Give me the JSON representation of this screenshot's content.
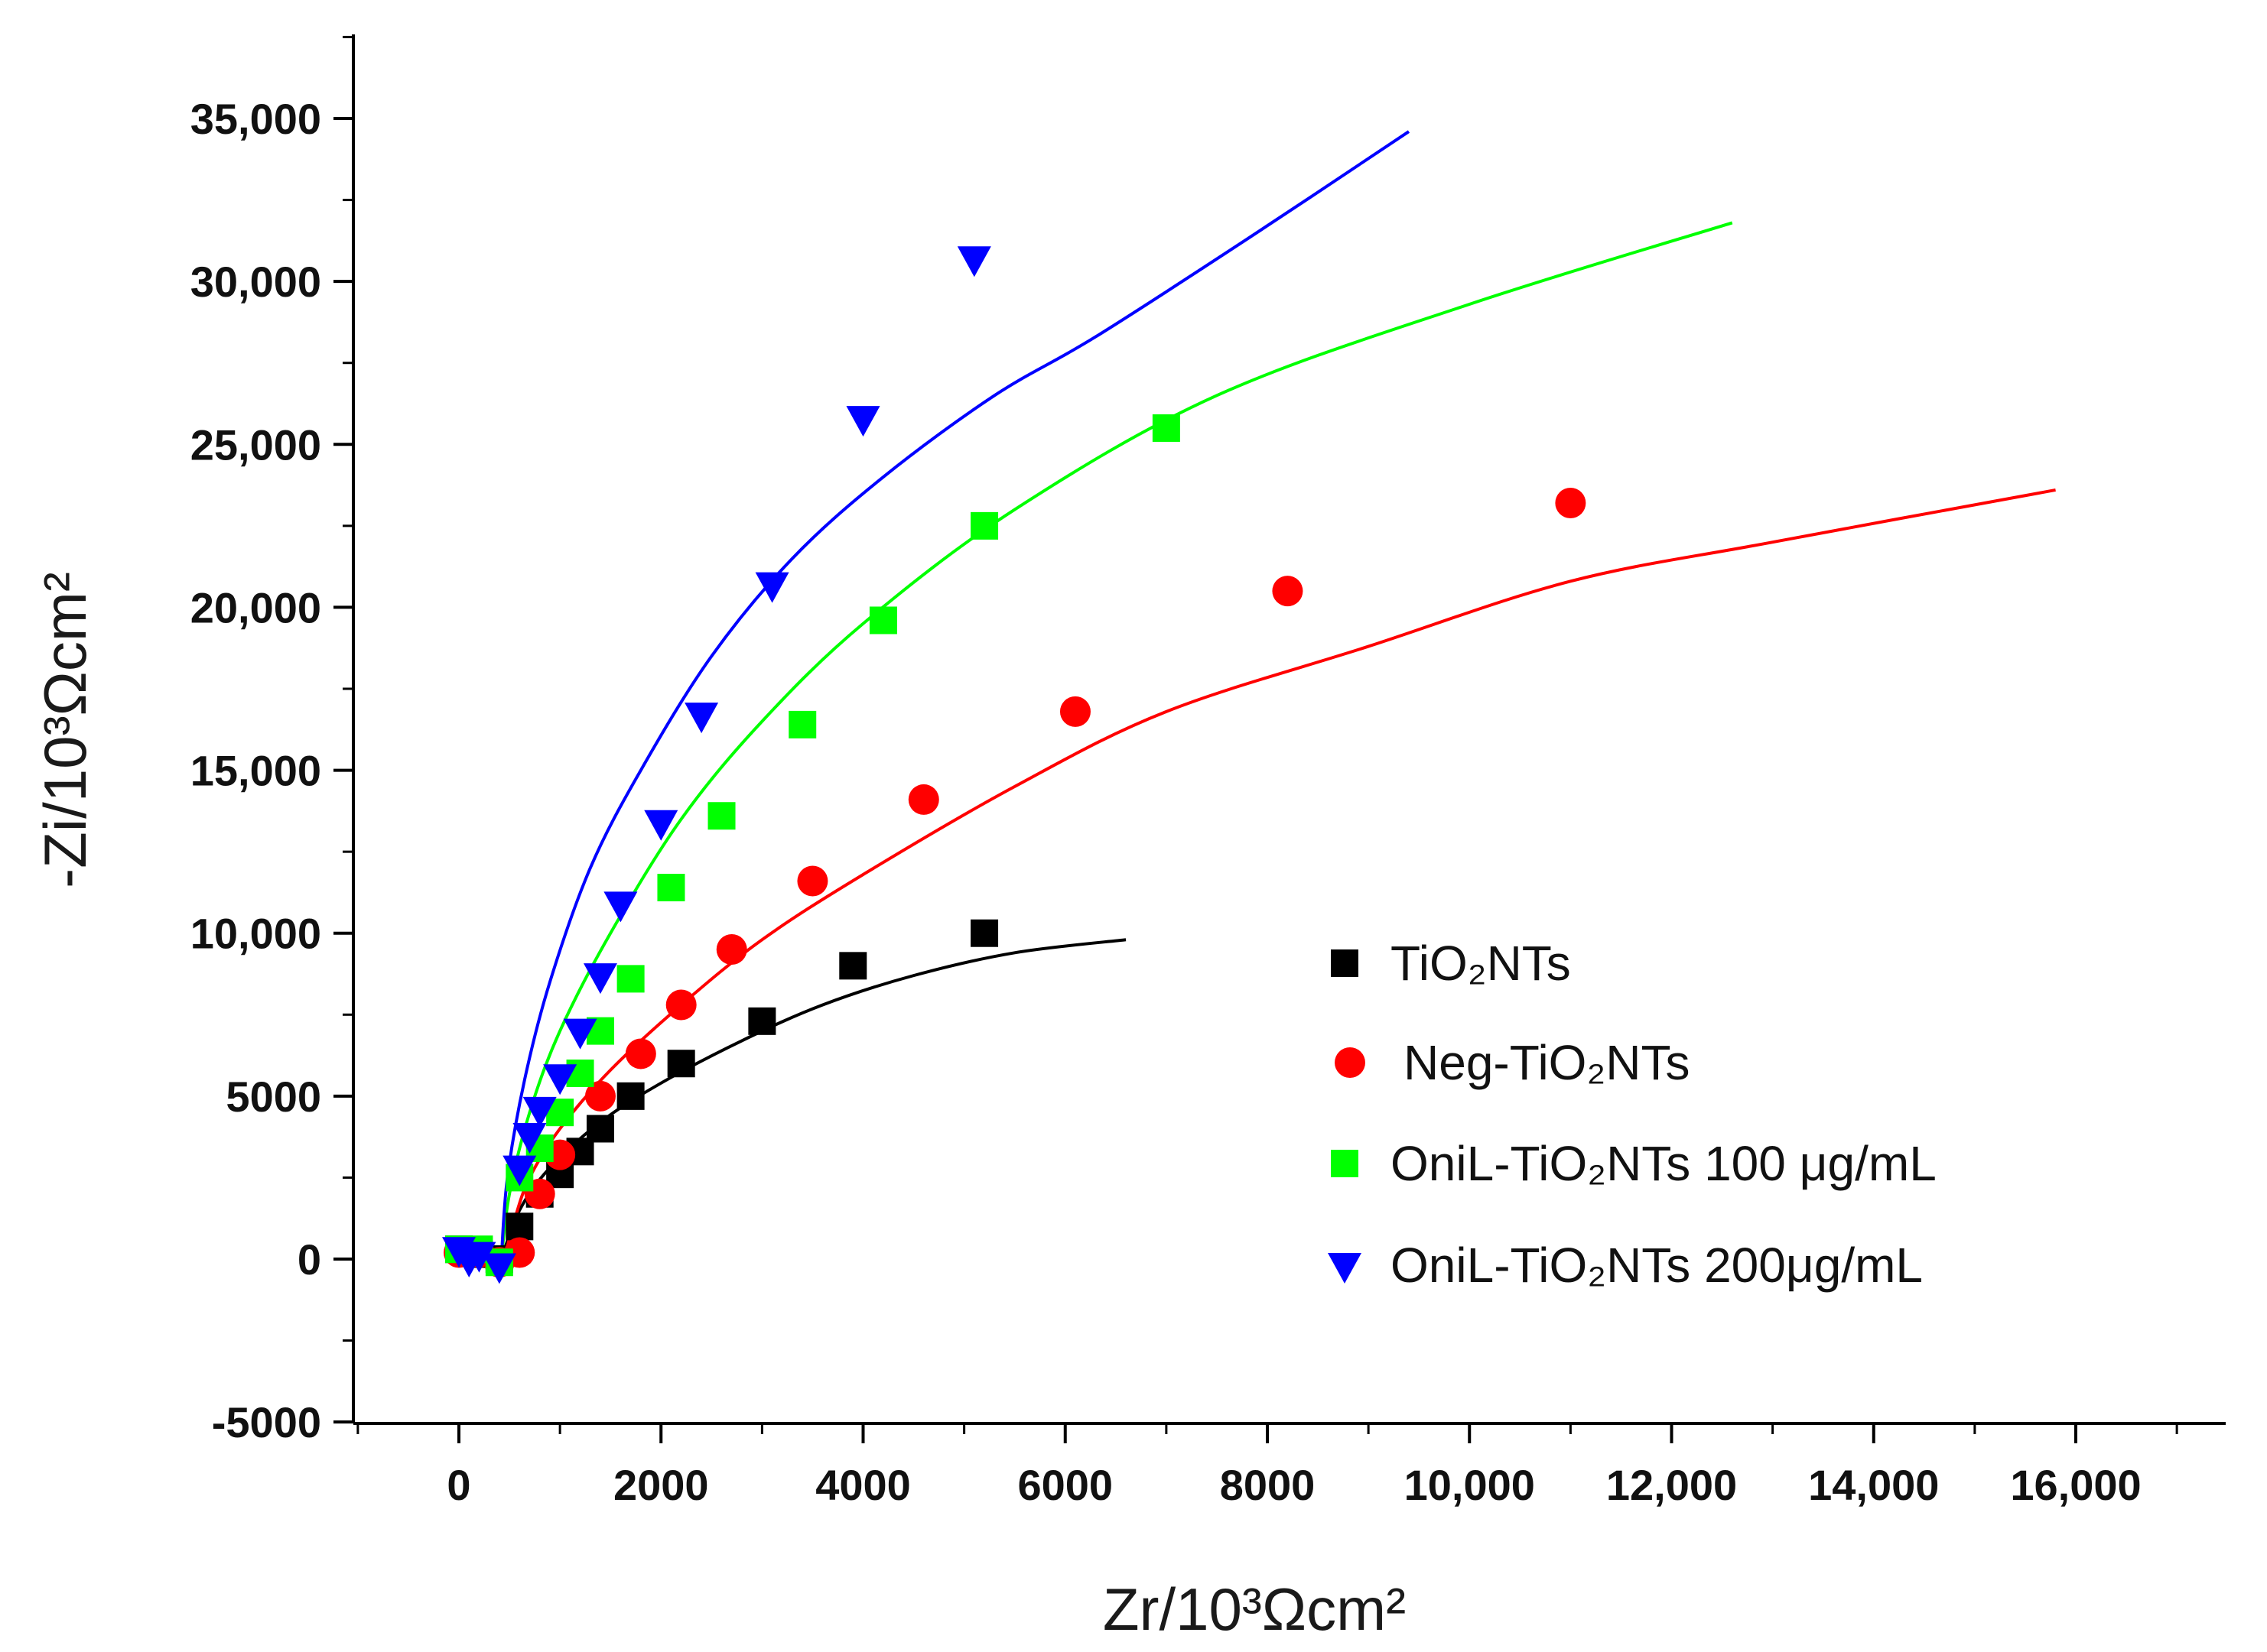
{
  "chart_data": {
    "type": "scatter",
    "title": "",
    "xlabel": "Zr/10³Ωcm²",
    "ylabel": "-Zi/10³Ωcm²",
    "xlim": [
      -1000,
      17200
    ],
    "ylim": [
      -5000,
      37000
    ],
    "xticks": [
      0,
      2000,
      4000,
      6000,
      8000,
      10000,
      12000,
      14000,
      16000
    ],
    "xtick_labels": [
      "0",
      "2000",
      "4000",
      "6000",
      "8000",
      "10,000",
      "12,000",
      "14,000",
      "16,000"
    ],
    "yticks": [
      -5000,
      0,
      5000,
      10000,
      15000,
      20000,
      25000,
      30000,
      35000
    ],
    "ytick_labels": [
      "-5000",
      "0",
      "5000",
      "10,000",
      "15,000",
      "20,000",
      "25,000",
      "30,000",
      "35,000"
    ],
    "legend_position": "right-middle",
    "series": [
      {
        "name": "TiO₂NTs",
        "color": "#000000",
        "marker": "square",
        "points": [
          [
            0,
            300
          ],
          [
            100,
            200
          ],
          [
            200,
            150
          ],
          [
            400,
            0
          ],
          [
            600,
            1000
          ],
          [
            800,
            2000
          ],
          [
            1000,
            2600
          ],
          [
            1200,
            3300
          ],
          [
            1400,
            4000
          ],
          [
            1700,
            5000
          ],
          [
            2200,
            6000
          ],
          [
            3000,
            7300
          ],
          [
            3900,
            9000
          ],
          [
            5200,
            10000
          ]
        ],
        "fit": [
          [
            420,
            0
          ],
          [
            600,
            1500
          ],
          [
            900,
            2800
          ],
          [
            1400,
            4200
          ],
          [
            2000,
            5400
          ],
          [
            2800,
            6700
          ],
          [
            3600,
            7800
          ],
          [
            4500,
            8700
          ],
          [
            5500,
            9400
          ],
          [
            6600,
            9800
          ]
        ]
      },
      {
        "name": "Neg-TiO₂NTs",
        "color": "#ff0000",
        "marker": "circle",
        "points": [
          [
            0,
            200
          ],
          [
            200,
            200
          ],
          [
            400,
            -100
          ],
          [
            600,
            200
          ],
          [
            800,
            2000
          ],
          [
            1000,
            3200
          ],
          [
            1400,
            5000
          ],
          [
            1800,
            6300
          ],
          [
            2200,
            7800
          ],
          [
            2700,
            9500
          ],
          [
            3500,
            11600
          ],
          [
            4600,
            14100
          ],
          [
            6100,
            16800
          ],
          [
            8200,
            20500
          ],
          [
            11000,
            23200
          ]
        ],
        "fit": [
          [
            450,
            0
          ],
          [
            550,
            1200
          ],
          [
            700,
            2500
          ],
          [
            1000,
            4000
          ],
          [
            1500,
            5800
          ],
          [
            2200,
            7800
          ],
          [
            3000,
            9800
          ],
          [
            4000,
            11800
          ],
          [
            5500,
            14500
          ],
          [
            7000,
            16800
          ],
          [
            9000,
            18800
          ],
          [
            11000,
            20800
          ],
          [
            13000,
            22000
          ],
          [
            15800,
            23600
          ]
        ]
      },
      {
        "name": "OniL-TiO₂NTs 100 μg/mL",
        "color": "#00ff00",
        "marker": "square",
        "points": [
          [
            0,
            300
          ],
          [
            200,
            300
          ],
          [
            400,
            -100
          ],
          [
            600,
            2500
          ],
          [
            800,
            3400
          ],
          [
            1000,
            4500
          ],
          [
            1200,
            5700
          ],
          [
            1400,
            7000
          ],
          [
            1700,
            8600
          ],
          [
            2100,
            11400
          ],
          [
            2600,
            13600
          ],
          [
            3400,
            16400
          ],
          [
            4200,
            19600
          ],
          [
            5200,
            22500
          ],
          [
            7000,
            25500
          ]
        ],
        "fit": [
          [
            420,
            0
          ],
          [
            500,
            2000
          ],
          [
            700,
            4500
          ],
          [
            1000,
            7000
          ],
          [
            1500,
            10000
          ],
          [
            2200,
            13500
          ],
          [
            3000,
            16500
          ],
          [
            4000,
            19500
          ],
          [
            5500,
            23000
          ],
          [
            7500,
            26500
          ],
          [
            10000,
            29300
          ],
          [
            12600,
            31800
          ]
        ]
      },
      {
        "name": "OniL-TiO₂NTs 200μg/mL",
        "color": "#0000ff",
        "marker": "triangle-down",
        "points": [
          [
            0,
            300
          ],
          [
            100,
            0
          ],
          [
            200,
            150
          ],
          [
            400,
            -200
          ],
          [
            600,
            2800
          ],
          [
            700,
            3800
          ],
          [
            800,
            4600
          ],
          [
            1000,
            5600
          ],
          [
            1200,
            7000
          ],
          [
            1400,
            8700
          ],
          [
            1600,
            10900
          ],
          [
            2000,
            13400
          ],
          [
            2400,
            16700
          ],
          [
            3100,
            20700
          ],
          [
            4000,
            25800
          ],
          [
            5100,
            30700
          ]
        ],
        "fit": [
          [
            420,
            0
          ],
          [
            480,
            2500
          ],
          [
            650,
            5500
          ],
          [
            900,
            8500
          ],
          [
            1300,
            12000
          ],
          [
            1800,
            15000
          ],
          [
            2500,
            18500
          ],
          [
            3300,
            21500
          ],
          [
            4200,
            24000
          ],
          [
            5300,
            26500
          ],
          [
            6300,
            28300
          ],
          [
            7800,
            31300
          ],
          [
            9400,
            34600
          ]
        ]
      }
    ]
  }
}
